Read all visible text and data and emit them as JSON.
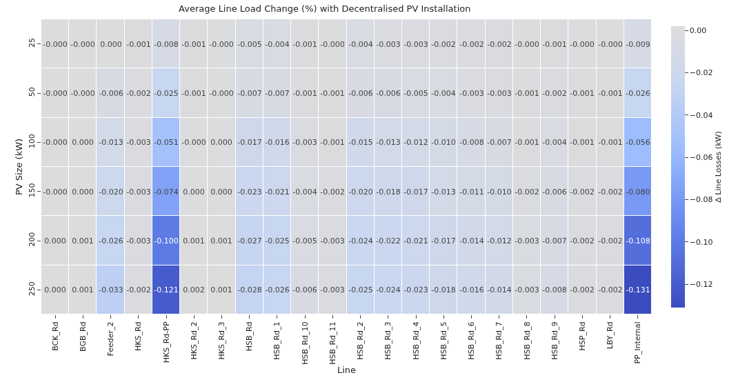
{
  "chart_data": {
    "type": "heatmap",
    "title": "Average Line Load Change (%) with Decentralised PV Installation",
    "xlabel": "Line",
    "ylabel": "PV Size (kW)",
    "clabel": "Δ Line Losses (kW)",
    "categories": [
      "BCK_Rd",
      "BGB_Rd",
      "Feeder_2",
      "HKS_Rd",
      "HKS_Rd-PP",
      "HKS_Rd_2",
      "HKS_Rd_3",
      "HSB_Rd",
      "HSB_Rd_1",
      "HSB_Rd_10",
      "HSB_Rd_11",
      "HSB_Rd_2",
      "HSB_Rd_3",
      "HSB_Rd_4",
      "HSB_Rd_5",
      "HSB_Rd_6",
      "HSB_Rd_7",
      "HSB_Rd_8",
      "HSB_Rd_9",
      "HSP_Rd",
      "LBY_Rd",
      "PP_Internal"
    ],
    "y_categories": [
      "25",
      "50",
      "100",
      "150",
      "200",
      "250"
    ],
    "cells": [
      [
        0.0,
        0.0,
        0.0,
        -0.001,
        -0.008,
        -0.001,
        0.0,
        -0.005,
        -0.004,
        -0.001,
        0.0,
        -0.004,
        -0.003,
        -0.003,
        -0.002,
        -0.002,
        -0.002,
        0.0,
        -0.001,
        0.0,
        0.0,
        -0.009
      ],
      [
        0.0,
        0.0,
        -0.006,
        -0.002,
        -0.025,
        -0.001,
        0.0,
        -0.007,
        -0.007,
        -0.001,
        -0.001,
        -0.006,
        -0.006,
        -0.005,
        -0.004,
        -0.003,
        -0.003,
        -0.001,
        -0.002,
        -0.001,
        -0.001,
        -0.026
      ],
      [
        0.0,
        0.0,
        -0.013,
        -0.003,
        -0.051,
        0.0,
        0.0,
        -0.017,
        -0.016,
        -0.003,
        -0.001,
        -0.015,
        -0.013,
        -0.012,
        -0.01,
        -0.008,
        -0.007,
        -0.001,
        -0.004,
        -0.001,
        -0.001,
        -0.056
      ],
      [
        0.0,
        0.0,
        -0.02,
        -0.003,
        -0.074,
        0.0,
        0.0,
        -0.023,
        -0.021,
        -0.004,
        -0.002,
        -0.02,
        -0.018,
        -0.017,
        -0.013,
        -0.011,
        -0.01,
        -0.002,
        -0.006,
        -0.002,
        -0.002,
        -0.08
      ],
      [
        0.0,
        0.001,
        -0.026,
        -0.003,
        -0.1,
        0.001,
        0.001,
        -0.027,
        -0.025,
        -0.005,
        -0.003,
        -0.024,
        -0.022,
        -0.021,
        -0.017,
        -0.014,
        -0.012,
        -0.003,
        -0.007,
        -0.002,
        -0.002,
        -0.108
      ],
      [
        0.0,
        0.001,
        -0.033,
        -0.002,
        -0.121,
        0.002,
        0.001,
        -0.028,
        -0.026,
        -0.006,
        -0.003,
        -0.025,
        -0.024,
        -0.023,
        -0.018,
        -0.016,
        -0.014,
        -0.003,
        -0.008,
        -0.002,
        -0.002,
        -0.131
      ]
    ],
    "cell_labels": [
      [
        "-0.000",
        "-0.000",
        "0.000",
        "-0.001",
        "-0.008",
        "-0.001",
        "-0.000",
        "-0.005",
        "-0.004",
        "-0.001",
        "-0.000",
        "-0.004",
        "-0.003",
        "-0.003",
        "-0.002",
        "-0.002",
        "-0.002",
        "-0.000",
        "-0.001",
        "-0.000",
        "-0.000",
        "-0.009"
      ],
      [
        "-0.000",
        "-0.000",
        "-0.006",
        "-0.002",
        "-0.025",
        "-0.001",
        "-0.000",
        "-0.007",
        "-0.007",
        "-0.001",
        "-0.001",
        "-0.006",
        "-0.006",
        "-0.005",
        "-0.004",
        "-0.003",
        "-0.003",
        "-0.001",
        "-0.002",
        "-0.001",
        "-0.001",
        "-0.026"
      ],
      [
        "-0.000",
        "0.000",
        "-0.013",
        "-0.003",
        "-0.051",
        "-0.000",
        "0.000",
        "-0.017",
        "-0.016",
        "-0.003",
        "-0.001",
        "-0.015",
        "-0.013",
        "-0.012",
        "-0.010",
        "-0.008",
        "-0.007",
        "-0.001",
        "-0.004",
        "-0.001",
        "-0.001",
        "-0.056"
      ],
      [
        "-0.000",
        "0.000",
        "-0.020",
        "-0.003",
        "-0.074",
        "0.000",
        "0.000",
        "-0.023",
        "-0.021",
        "-0.004",
        "-0.002",
        "-0.020",
        "-0.018",
        "-0.017",
        "-0.013",
        "-0.011",
        "-0.010",
        "-0.002",
        "-0.006",
        "-0.002",
        "-0.002",
        "-0.080"
      ],
      [
        "0.000",
        "0.001",
        "-0.026",
        "-0.003",
        "-0.100",
        "0.001",
        "0.001",
        "-0.027",
        "-0.025",
        "-0.005",
        "-0.003",
        "-0.024",
        "-0.022",
        "-0.021",
        "-0.017",
        "-0.014",
        "-0.012",
        "-0.003",
        "-0.007",
        "-0.002",
        "-0.002",
        "-0.108"
      ],
      [
        "0.000",
        "0.001",
        "-0.033",
        "-0.002",
        "-0.121",
        "0.002",
        "0.001",
        "-0.028",
        "-0.026",
        "-0.006",
        "-0.003",
        "-0.025",
        "-0.024",
        "-0.023",
        "-0.018",
        "-0.016",
        "-0.014",
        "-0.003",
        "-0.008",
        "-0.002",
        "-0.002",
        "-0.131"
      ]
    ],
    "clim": [
      -0.131,
      0.002
    ],
    "cticks": [
      {
        "value": 0,
        "label": "0.00"
      },
      {
        "value": -0.02,
        "label": "−0.02"
      },
      {
        "value": -0.04,
        "label": "−0.04"
      },
      {
        "value": -0.06,
        "label": "−0.06"
      },
      {
        "value": -0.08,
        "label": "−0.08"
      },
      {
        "value": -0.1,
        "label": "−0.10"
      },
      {
        "value": -0.12,
        "label": "−0.12"
      }
    ]
  }
}
